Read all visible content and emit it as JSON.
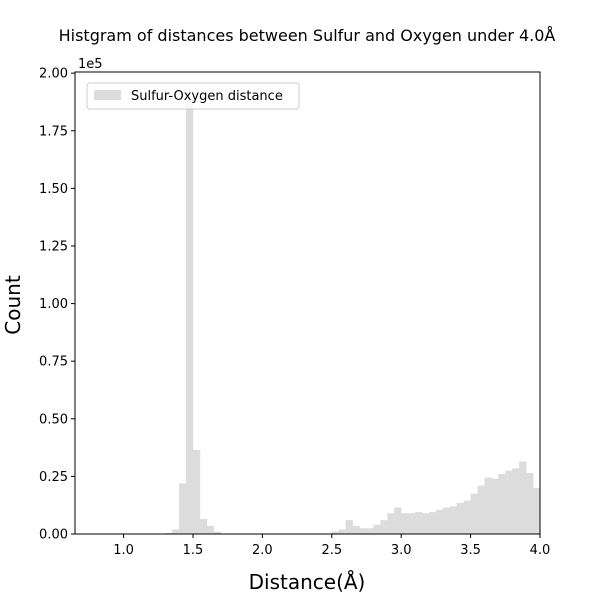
{
  "chart_data": {
    "type": "bar",
    "title": "Histgram of distances between Sulfur and Oxygen under 4.0Å",
    "xlabel": "Distance(Å)",
    "ylabel": "Count",
    "y_offset_label": "1e5",
    "xlim": [
      0.65,
      4.0
    ],
    "ylim": [
      0,
      200500
    ],
    "bin_width": 0.05,
    "x_ticks": [
      1.0,
      1.5,
      2.0,
      2.5,
      3.0,
      3.5,
      4.0
    ],
    "x_tick_labels": [
      "1.0",
      "1.5",
      "2.0",
      "2.5",
      "3.0",
      "3.5",
      "4.0"
    ],
    "y_ticks": [
      0,
      25000,
      50000,
      75000,
      100000,
      125000,
      150000,
      175000,
      200000
    ],
    "y_tick_labels": [
      "0.00",
      "0.25",
      "0.50",
      "0.75",
      "1.00",
      "1.25",
      "1.50",
      "1.75",
      "2.00"
    ],
    "legend": {
      "position": "upper-left"
    },
    "bar_color": "#dcdcdc",
    "series": [
      {
        "name": "Sulfur-Oxygen distance",
        "bins": [
          {
            "x": 1.3,
            "y": 500
          },
          {
            "x": 1.35,
            "y": 2000
          },
          {
            "x": 1.4,
            "y": 22000
          },
          {
            "x": 1.45,
            "y": 188000
          },
          {
            "x": 1.5,
            "y": 36500
          },
          {
            "x": 1.55,
            "y": 6500
          },
          {
            "x": 1.6,
            "y": 3500
          },
          {
            "x": 1.65,
            "y": 1000
          },
          {
            "x": 2.5,
            "y": 1000
          },
          {
            "x": 2.55,
            "y": 2000
          },
          {
            "x": 2.6,
            "y": 6000
          },
          {
            "x": 2.65,
            "y": 3500
          },
          {
            "x": 2.7,
            "y": 2500
          },
          {
            "x": 2.75,
            "y": 2500
          },
          {
            "x": 2.8,
            "y": 4000
          },
          {
            "x": 2.85,
            "y": 6000
          },
          {
            "x": 2.9,
            "y": 9000
          },
          {
            "x": 2.95,
            "y": 11500
          },
          {
            "x": 3.0,
            "y": 9000
          },
          {
            "x": 3.05,
            "y": 9000
          },
          {
            "x": 3.1,
            "y": 9500
          },
          {
            "x": 3.15,
            "y": 9000
          },
          {
            "x": 3.2,
            "y": 9500
          },
          {
            "x": 3.25,
            "y": 10500
          },
          {
            "x": 3.3,
            "y": 11500
          },
          {
            "x": 3.35,
            "y": 12000
          },
          {
            "x": 3.4,
            "y": 13500
          },
          {
            "x": 3.45,
            "y": 14500
          },
          {
            "x": 3.5,
            "y": 17500
          },
          {
            "x": 3.55,
            "y": 21000
          },
          {
            "x": 3.6,
            "y": 24500
          },
          {
            "x": 3.65,
            "y": 24000
          },
          {
            "x": 3.7,
            "y": 26000
          },
          {
            "x": 3.75,
            "y": 27500
          },
          {
            "x": 3.8,
            "y": 28500
          },
          {
            "x": 3.85,
            "y": 31500
          },
          {
            "x": 3.9,
            "y": 26500
          },
          {
            "x": 3.95,
            "y": 20000
          }
        ]
      }
    ]
  }
}
